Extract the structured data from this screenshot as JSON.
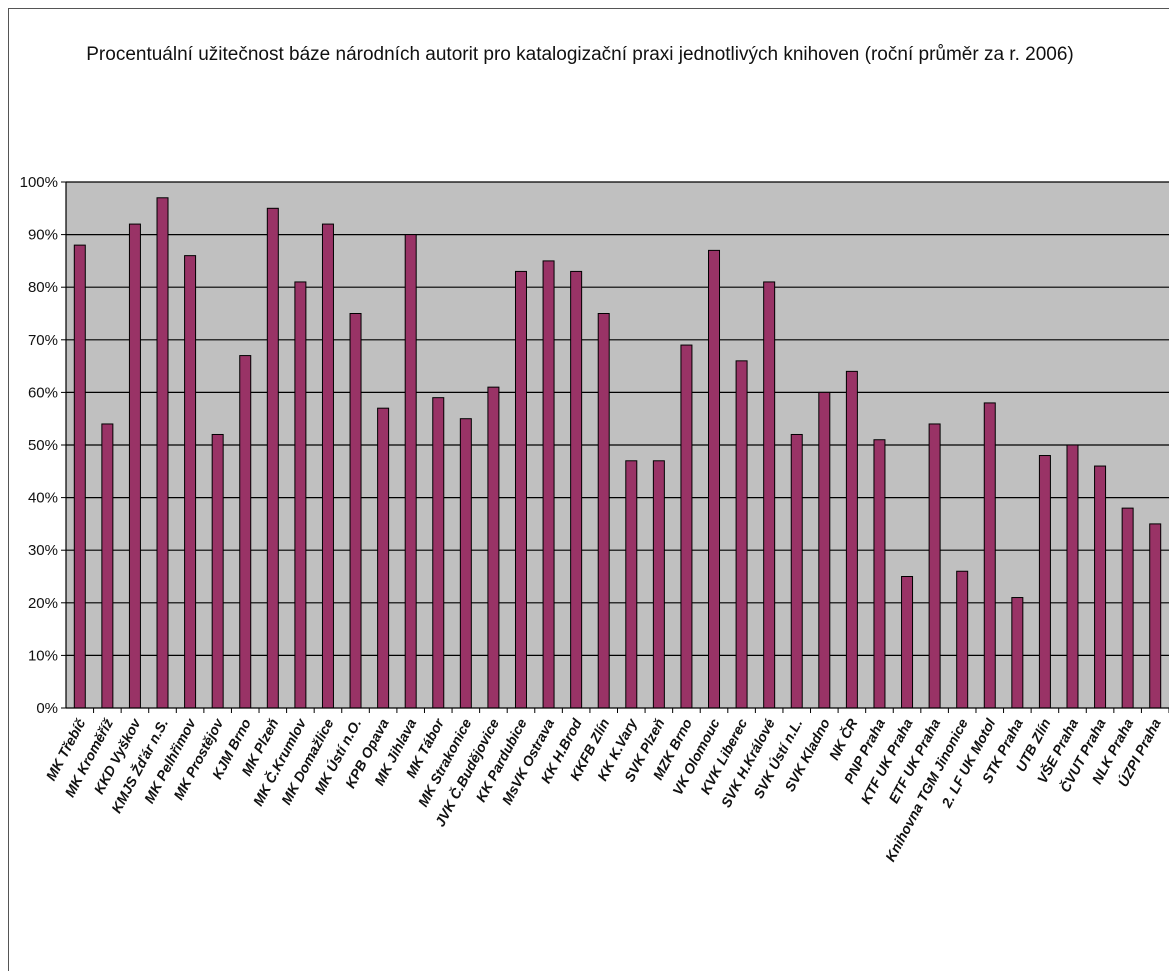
{
  "chart_data": {
    "type": "bar",
    "title": "Procentuální užitečnost báze národních autorit pro katalogizační praxi jednotlivých knihoven (roční průměr za r. 2006)",
    "xlabel": "",
    "ylabel": "",
    "ylim": [
      0,
      100
    ],
    "yticks": [
      "0%",
      "10%",
      "20%",
      "30%",
      "40%",
      "50%",
      "60%",
      "70%",
      "80%",
      "90%",
      "100%"
    ],
    "grid": true,
    "legend": "none",
    "colors": {
      "bar": "#993366",
      "plot_bg": "#c0c0c0",
      "grid": "#000000"
    },
    "categories": [
      "MK Třebíč",
      "MK Kroměříž",
      "KKD Vyškov",
      "KMJS Žďár n.S.",
      "MK Pelhřimov",
      "MK Prostějov",
      "KJM Brno",
      "MK Plzeň",
      "MK Č.Krumlov",
      "MK Domažlice",
      "MK Ústí n.O.",
      "KPB Opava",
      "MK Jihlava",
      "MK Tábor",
      "MK Strakonice",
      "JVK Č.Budějovice",
      "KK Pardubice",
      "MsVK Ostrava",
      "KK H.Brod",
      "KKFB Zlín",
      "KK K.Vary",
      "SVK Plzeň",
      "MZK Brno",
      "VK Olomouc",
      "KVK Liberec",
      "SVK H.Králové",
      "SVK Ústí n.L.",
      "SVK Kladno",
      "NK ČR",
      "PNP Praha",
      "KTF UK Praha",
      "ETF UK Praha",
      "Knihovna TGM Jinonice",
      "2. LF UK Motol",
      "STK Praha",
      "UTB Zlín",
      "VŠE Praha",
      "ČVUT Praha",
      "NLK Praha",
      "ÚZPI Praha"
    ],
    "values": [
      88,
      54,
      92,
      97,
      86,
      52,
      67,
      95,
      81,
      92,
      75,
      57,
      90,
      59,
      55,
      61,
      83,
      85,
      83,
      75,
      47,
      47,
      69,
      87,
      66,
      81,
      52,
      60,
      64,
      51,
      25,
      54,
      26,
      58,
      21,
      48,
      50,
      46,
      38,
      35
    ]
  }
}
